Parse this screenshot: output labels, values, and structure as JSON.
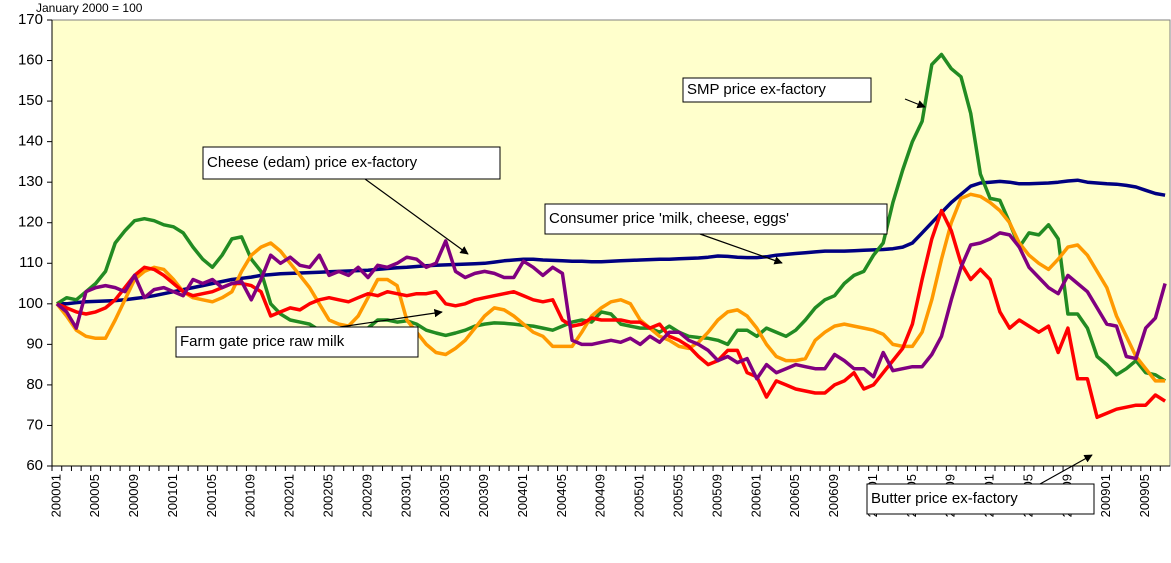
{
  "chart_data": {
    "type": "line",
    "subtitle": "January 2000 = 100",
    "ylim": [
      60,
      170
    ],
    "yticks": [
      60,
      70,
      80,
      90,
      100,
      110,
      120,
      130,
      140,
      150,
      160,
      170
    ],
    "grid": false,
    "plot_background": "#ffffcc",
    "categories": [
      "200001",
      null,
      null,
      null,
      "200005",
      null,
      null,
      null,
      "200009",
      null,
      null,
      null,
      "200101",
      null,
      null,
      null,
      "200105",
      null,
      null,
      null,
      "200109",
      null,
      null,
      null,
      "200201",
      null,
      null,
      null,
      "200205",
      null,
      null,
      null,
      "200209",
      null,
      null,
      null,
      "200301",
      null,
      null,
      null,
      "200305",
      null,
      null,
      null,
      "200309",
      null,
      null,
      null,
      "200401",
      null,
      null,
      null,
      "200405",
      null,
      null,
      null,
      "200409",
      null,
      null,
      null,
      "200501",
      null,
      null,
      null,
      "200505",
      null,
      null,
      null,
      "200509",
      null,
      null,
      null,
      "200601",
      null,
      null,
      null,
      "200605",
      null,
      null,
      null,
      "200609",
      null,
      null,
      null,
      "200701",
      null,
      null,
      null,
      "200705",
      null,
      null,
      null,
      "200709",
      null,
      null,
      null,
      "200801",
      null,
      null,
      null,
      "200805",
      null,
      null,
      null,
      "200809",
      null,
      null,
      null,
      "200901",
      null,
      null,
      null,
      "200905",
      null,
      null
    ],
    "series": [
      {
        "name": "Consumer price 'milk, cheese, eggs'",
        "color": "#000080",
        "values": [
          100,
          100,
          100.3,
          100.5,
          100.6,
          100.7,
          100.8,
          101,
          101.3,
          101.6,
          102,
          102.5,
          103,
          103.5,
          104,
          104.5,
          105,
          105.5,
          106,
          106.3,
          106.6,
          107,
          107.2,
          107.4,
          107.5,
          107.6,
          107.7,
          107.8,
          107.9,
          108,
          108.1,
          108.2,
          108.3,
          108.5,
          108.7,
          108.9,
          109,
          109.2,
          109.4,
          109.5,
          109.6,
          109.7,
          109.8,
          109.9,
          110,
          110.3,
          110.6,
          110.8,
          111,
          111,
          110.8,
          110.7,
          110.6,
          110.5,
          110.5,
          110.4,
          110.4,
          110.5,
          110.6,
          110.7,
          110.8,
          110.9,
          111,
          111,
          111.1,
          111.2,
          111.3,
          111.5,
          111.8,
          111.7,
          111.5,
          111.4,
          111.4,
          111.6,
          112,
          112.2,
          112.4,
          112.6,
          112.8,
          113,
          113,
          113,
          113.1,
          113.2,
          113.3,
          113.4,
          113.6,
          114,
          115,
          117.5,
          120,
          122.5,
          125,
          127,
          129,
          129.8,
          130,
          130.2,
          130,
          129.6,
          129.6,
          129.7,
          129.8,
          130,
          130.3,
          130.5,
          130,
          129.8,
          129.6,
          129.5,
          129.2,
          128.8,
          128,
          127.2,
          126.8
        ]
      },
      {
        "name": "SMP price ex-factory",
        "color": "#228b22",
        "values": [
          100,
          101.5,
          101,
          103,
          105,
          108,
          115,
          118,
          120.5,
          121,
          120.5,
          119.5,
          119,
          117.5,
          114,
          111,
          109,
          112,
          116,
          116.5,
          111,
          108,
          100,
          97.5,
          96,
          95.5,
          95,
          93.5,
          92,
          92.5,
          92.8,
          92.7,
          94,
          96,
          96,
          95.5,
          95.8,
          95,
          93.5,
          92.8,
          92.2,
          92.8,
          93.5,
          94.5,
          95,
          95.3,
          95.2,
          95,
          94.7,
          94.5,
          94,
          93.5,
          94.5,
          95.5,
          96,
          95.5,
          98,
          97.5,
          95,
          94.5,
          94,
          94,
          93,
          94.5,
          93,
          92,
          91.7,
          91.5,
          91,
          90,
          93.5,
          93.5,
          92,
          94,
          93,
          92,
          93.5,
          96,
          99,
          101,
          102,
          105,
          107,
          108,
          112,
          115,
          125,
          133,
          140,
          145,
          159,
          161.5,
          158,
          156,
          147,
          132,
          126,
          125.5,
          120,
          114,
          117.5,
          117,
          119.5,
          116,
          97.5,
          97.5,
          94,
          87,
          85,
          82.5,
          84,
          86,
          83,
          82.5,
          81
        ]
      },
      {
        "name": "Farm gate price raw milk",
        "color": "#ff9900",
        "values": [
          100,
          97,
          93.5,
          92,
          91.5,
          91.5,
          96,
          101,
          106,
          108,
          109,
          108.5,
          106,
          103,
          101.5,
          101,
          100.5,
          101.5,
          103,
          108,
          112,
          114,
          115,
          113,
          110,
          107,
          104,
          100,
          96,
          95,
          94.5,
          97,
          101.5,
          106,
          106,
          104.5,
          96,
          93,
          90,
          88,
          87.5,
          89,
          91,
          94,
          97,
          99,
          98.5,
          97,
          95,
          93,
          92,
          89.5,
          89.5,
          89.5,
          93,
          97,
          99,
          100.5,
          101,
          100,
          96,
          94,
          92,
          91,
          89.5,
          89,
          90.5,
          93,
          96,
          98,
          98.5,
          97,
          94,
          90,
          87,
          86,
          86,
          86.5,
          91,
          93,
          94.5,
          95,
          94.5,
          94,
          93.5,
          92.5,
          90,
          89.5,
          89.5,
          93,
          101,
          111,
          120,
          126,
          127,
          126.5,
          125,
          123,
          120,
          115,
          112,
          110,
          108.5,
          111,
          114,
          114.5,
          112,
          108,
          104,
          97,
          92,
          87,
          84,
          81,
          81
        ]
      },
      {
        "name": "Butter price ex-factory",
        "color": "#ff0000",
        "values": [
          100,
          99,
          98,
          97.5,
          98,
          99,
          101,
          104,
          107,
          109,
          108.5,
          107,
          105,
          103,
          102,
          102.5,
          103,
          104,
          105,
          105,
          104.5,
          103,
          97,
          98,
          99,
          98.5,
          100,
          101,
          101.5,
          101,
          100.5,
          101.5,
          102.5,
          102,
          103,
          102.5,
          102,
          102.5,
          102.5,
          103,
          100,
          99.5,
          100,
          101,
          101.5,
          102,
          102.5,
          103,
          102,
          101,
          100.5,
          101,
          96,
          94.5,
          95,
          96.5,
          96,
          96,
          96,
          95.5,
          95.5,
          94,
          95,
          92,
          91,
          89.5,
          87,
          85,
          86,
          88.5,
          88.5,
          83,
          82,
          77,
          81,
          80,
          79,
          78.5,
          78,
          78,
          80,
          81,
          83,
          79,
          80,
          83,
          86,
          89,
          95,
          106,
          116,
          123,
          118,
          110,
          106,
          108.5,
          106,
          98,
          94,
          96,
          94.5,
          93,
          94.5,
          88,
          94,
          81.5,
          81.5,
          72,
          73,
          74,
          74.5,
          75,
          75,
          77.5,
          76
        ]
      },
      {
        "name": "Cheese (edam) price ex-factory",
        "color": "#800080",
        "values": [
          100,
          98,
          94,
          103,
          104,
          104.5,
          104,
          103,
          107,
          101.5,
          103.5,
          104,
          103,
          102,
          106,
          105,
          106,
          104,
          105,
          105.5,
          101,
          106,
          112,
          110,
          111.5,
          109.5,
          109,
          112,
          107,
          108,
          107,
          109,
          106.5,
          109.5,
          109,
          110,
          111.5,
          111,
          109,
          110,
          115.5,
          108,
          106.5,
          107.5,
          108,
          107.5,
          106.5,
          106.5,
          110.5,
          109,
          107,
          109,
          107.5,
          91,
          90,
          90,
          90.5,
          91,
          90.5,
          91.5,
          90,
          92,
          90.5,
          93,
          93,
          91,
          90,
          88.5,
          86,
          87,
          85.5,
          86.5,
          81.5,
          85,
          83,
          84,
          85,
          84.5,
          84,
          84,
          87.5,
          86,
          84,
          84,
          82,
          88,
          83.5,
          84,
          84.5,
          84.5,
          87.5,
          92,
          101,
          109,
          114.5,
          115,
          116,
          117.5,
          117,
          114,
          109,
          106.5,
          104,
          102.5,
          107,
          105,
          103,
          99,
          95,
          94.5,
          87,
          86.5,
          94,
          96.5,
          105
        ]
      }
    ]
  }
}
